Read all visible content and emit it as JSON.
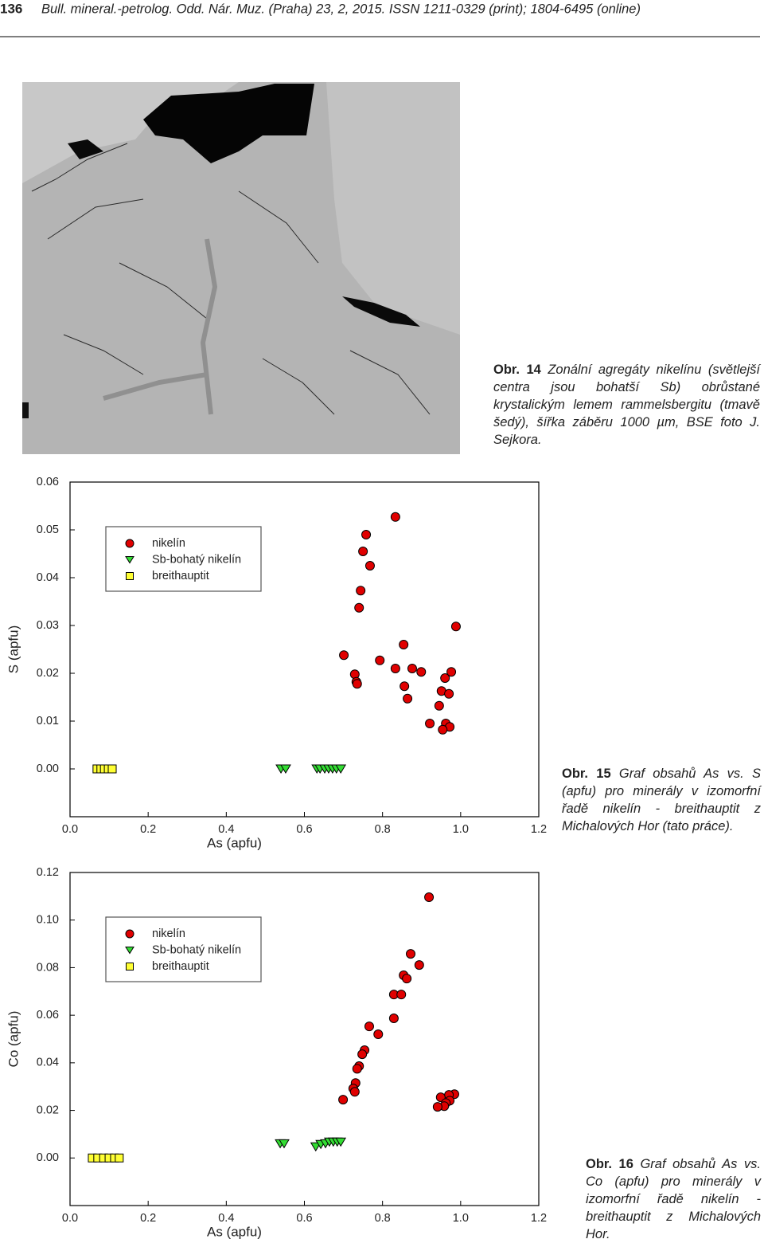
{
  "header": {
    "page_number": "136",
    "journal": "Bull. mineral.-petrolog. Odd. Nár. Muz. (Praha) 23, 2, 2015. ISSN 1211-0329 (print); 1804-6495 (online)"
  },
  "figure14": {
    "label": "Obr. 14",
    "caption": "Zonální agregáty nikelínu (světlejší centra jsou bohatší Sb) obrůstané krystalickým lemem rammelsbergitu (tmavě šedý), šířka záběru 1000 µm, BSE foto J. Sejkora."
  },
  "chart_data": [
    {
      "type": "scatter",
      "xlabel": "As (apfu)",
      "ylabel": "S (apfu)",
      "legend": "upper left",
      "xlim": [
        0,
        1.2
      ],
      "xticks": [
        {
          "value": 0,
          "label": "0.0"
        },
        0.2,
        0.4,
        0.6,
        0.8,
        {
          "value": 1,
          "label": "1.0"
        },
        1.2
      ],
      "ylim": [
        -0.01,
        0.06
      ],
      "yticks": [
        {
          "value": 0,
          "label": "0.00"
        },
        0.01,
        0.02,
        0.03,
        0.04,
        0.05,
        0.06
      ],
      "series": [
        {
          "name": "nikelín",
          "color": "#e00000",
          "marker": "circle",
          "x": [
            0.833,
            0.758,
            0.75,
            0.768,
            0.744,
            0.74,
            0.988,
            0.701,
            0.854,
            0.793,
            0.833,
            0.876,
            0.899,
            0.976,
            0.729,
            0.733,
            0.735,
            0.96,
            0.856,
            0.951,
            0.97,
            0.864,
            0.945,
            0.921,
            0.962,
            0.972,
            0.954
          ],
          "values": [
            0.0527,
            0.049,
            0.0455,
            0.0425,
            0.0373,
            0.0337,
            0.0298,
            0.0238,
            0.026,
            0.0227,
            0.021,
            0.021,
            0.0203,
            0.0203,
            0.0198,
            0.0182,
            0.0178,
            0.019,
            0.0173,
            0.0163,
            0.0157,
            0.0147,
            0.0132,
            0.0095,
            0.0095,
            0.0088,
            0.0082
          ]
        },
        {
          "name": "Sb-bohatý nikelín",
          "color": "#33dd33",
          "marker": "triangle",
          "x": [
            0.54,
            0.552,
            0.632,
            0.64,
            0.652,
            0.662,
            0.672,
            0.682,
            0.693
          ],
          "values": [
            0,
            0,
            0,
            0,
            0,
            0,
            0,
            0,
            0
          ]
        },
        {
          "name": "breithauptit",
          "color": "#ffff33",
          "marker": "square",
          "x": [
            0.069,
            0.079,
            0.088,
            0.098,
            0.108
          ],
          "values": [
            0,
            0,
            0,
            0,
            0
          ]
        }
      ]
    },
    {
      "type": "scatter",
      "xlabel": "As (apfu)",
      "ylabel": "Co (apfu)",
      "legend": "upper left",
      "xlim": [
        0,
        1.2
      ],
      "xticks": [
        {
          "value": 0,
          "label": "0.0"
        },
        0.2,
        0.4,
        0.6,
        0.8,
        {
          "value": 1,
          "label": "1.0"
        },
        1.2
      ],
      "ylim": [
        -0.02,
        0.12
      ],
      "yticks": [
        {
          "value": 0,
          "label": "0.00"
        },
        0.02,
        0.04,
        0.06,
        0.08,
        {
          "value": 0.1,
          "label": "0.10"
        },
        0.12
      ],
      "series": [
        {
          "name": "nikelín",
          "color": "#e00000",
          "marker": "circle",
          "x": [
            0.919,
            0.872,
            0.894,
            0.854,
            0.862,
            0.829,
            0.848,
            0.766,
            0.829,
            0.789,
            0.754,
            0.748,
            0.74,
            0.735,
            0.731,
            0.725,
            0.729,
            0.699,
            0.984,
            0.97,
            0.949,
            0.972,
            0.962,
            0.958,
            0.941
          ],
          "values": [
            0.1096,
            0.0858,
            0.0811,
            0.0768,
            0.0754,
            0.0687,
            0.0687,
            0.0553,
            0.0587,
            0.052,
            0.0453,
            0.0436,
            0.0386,
            0.0375,
            0.0315,
            0.0292,
            0.0278,
            0.0245,
            0.0268,
            0.0265,
            0.0255,
            0.0241,
            0.0231,
            0.0218,
            0.0215
          ]
        },
        {
          "name": "Sb-bohatý nikelín",
          "color": "#33dd33",
          "marker": "triangle",
          "x": [
            0.538,
            0.548,
            0.629,
            0.642,
            0.654,
            0.664,
            0.674,
            0.684,
            0.693
          ],
          "values": [
            0.006,
            0.006,
            0.0047,
            0.0057,
            0.006,
            0.0067,
            0.0067,
            0.0067,
            0.0067
          ]
        },
        {
          "name": "breithauptit",
          "color": "#ffff33",
          "marker": "square",
          "x": [
            0.057,
            0.071,
            0.086,
            0.1,
            0.114,
            0.126
          ],
          "values": [
            0,
            0,
            0,
            0,
            0,
            0
          ]
        }
      ]
    }
  ],
  "figure15": {
    "label": "Obr. 15",
    "caption": "Graf obsahů As vs. S (apfu) pro minerály v izomorfní řadě nikelín - breithauptit z Michalových Hor (tato práce)."
  },
  "figure16": {
    "label": "Obr. 16",
    "caption": "Graf obsahů As vs. Co (apfu) pro minerály v izomorfní řadě nikelín - breithauptit z Michalových Hor."
  }
}
